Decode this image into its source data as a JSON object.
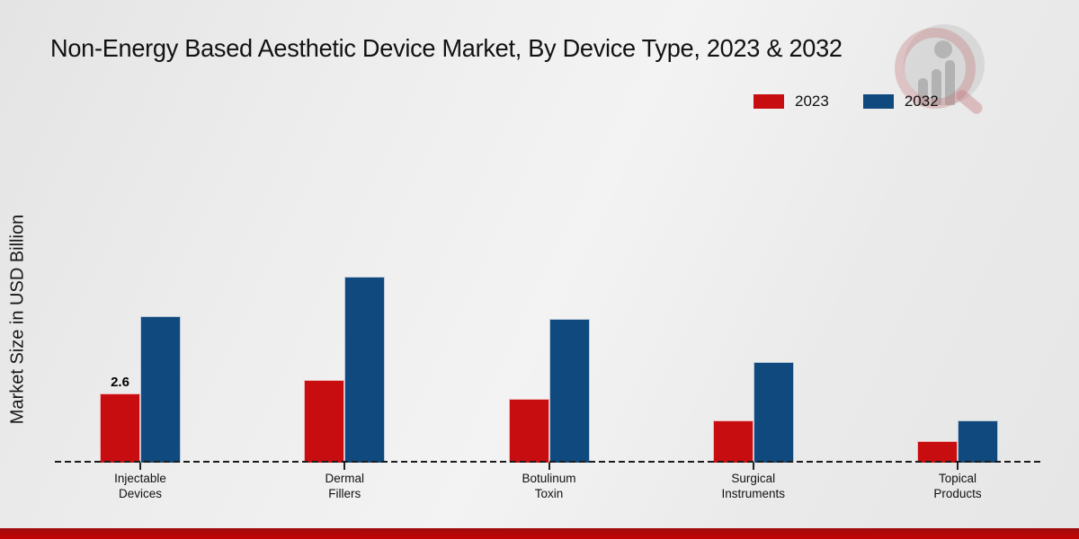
{
  "title": "Non-Energy Based Aesthetic Device Market, By Device Type, 2023 & 2032",
  "ylabel": "Market Size in USD Billion",
  "colors": {
    "series_2023_red": "#c80d10",
    "series_2032_blue": "#10497e",
    "bottom_stripe_red": "#b00609",
    "background_gray": "#ececec",
    "text": "#111111"
  },
  "chart_data": {
    "type": "bar",
    "categories": [
      "Injectable Devices",
      "Dermal Fillers",
      "Botulinum Toxin",
      "Surgical Instruments",
      "Topical Products"
    ],
    "category_label_lines": [
      [
        "Injectable",
        "Devices"
      ],
      [
        "Dermal",
        "Fillers"
      ],
      [
        "Botulinum",
        "Toxin"
      ],
      [
        "Surgical",
        "Instruments"
      ],
      [
        "Topical",
        "Products"
      ]
    ],
    "series": [
      {
        "name": "2023",
        "color": "#c80d10",
        "values": [
          2.6,
          3.1,
          2.4,
          1.6,
          0.8
        ]
      },
      {
        "name": "2032",
        "color": "#10497e",
        "values": [
          5.5,
          7.0,
          5.4,
          3.8,
          1.6
        ]
      }
    ],
    "value_labels": [
      {
        "series": "2023",
        "category": "Injectable Devices",
        "text": "2.6"
      }
    ],
    "xlabel": "",
    "ylim": [
      0,
      7.5
    ],
    "gridlines": false,
    "baseline_style": "dashed",
    "legend_position": "top-right",
    "title": "Non-Energy Based Aesthetic Device Market, By Device Type, 2023 & 2032"
  },
  "watermark": {
    "name": "magnifier-bar-chart-logo"
  }
}
